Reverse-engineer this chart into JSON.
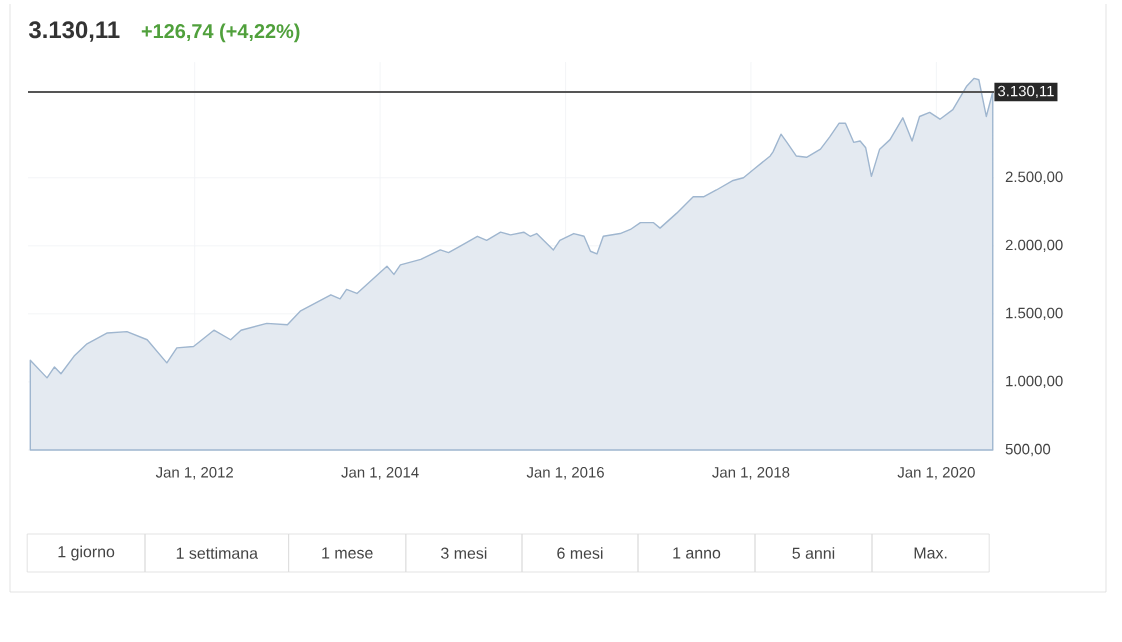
{
  "chart_data": {
    "type": "area",
    "title": "3.130,11",
    "subtitle": "+126,74 (+4,22%)",
    "x": [
      "2010-03-23",
      "2010-05-28",
      "2010-06-27",
      "2010-07-22",
      "2010-09-13",
      "2010-11-03",
      "2011-01-22",
      "2011-04-08",
      "2011-06-27",
      "2011-09-13",
      "2011-10-22",
      "2011-12-27",
      "2012-03-16",
      "2012-05-21",
      "2012-07-01",
      "2012-10-11",
      "2013-01-01",
      "2013-02-21",
      "2013-06-20",
      "2013-07-26",
      "2013-08-21",
      "2013-10-01",
      "2014-01-28",
      "2014-02-25",
      "2014-03-20",
      "2014-06-09",
      "2014-08-25",
      "2014-09-27",
      "2014-11-14",
      "2015-01-19",
      "2015-02-25",
      "2015-04-19",
      "2015-05-28",
      "2015-07-19",
      "2015-08-14",
      "2015-09-09",
      "2015-11-14",
      "2015-12-09",
      "2016-02-03",
      "2016-03-13",
      "2016-04-08",
      "2016-05-03",
      "2016-05-28",
      "2016-08-03",
      "2016-09-13",
      "2016-10-22",
      "2016-12-13",
      "2017-01-08",
      "2017-03-13",
      "2017-05-17",
      "2017-06-27",
      "2017-08-17",
      "2017-10-22",
      "2017-12-02",
      "2018-01-11",
      "2018-03-16",
      "2018-03-27",
      "2018-04-28",
      "2018-05-21",
      "2018-06-27",
      "2018-08-07",
      "2018-10-01",
      "2018-11-07",
      "2018-12-13",
      "2019-01-08",
      "2019-02-10",
      "2019-03-05",
      "2019-03-27",
      "2019-04-19",
      "2019-05-21",
      "2019-07-01",
      "2019-08-21",
      "2019-09-27",
      "2019-10-26",
      "2019-12-05",
      "2020-01-15",
      "2020-03-05",
      "2020-04-28",
      "2020-05-28",
      "2020-06-16",
      "2020-07-15",
      "2020-08-10"
    ],
    "series": [
      {
        "color": "#9fb6cf",
        "values": [
          1160,
          1030,
          1110,
          1060,
          1190,
          1280,
          1360,
          1370,
          1310,
          1140,
          1250,
          1260,
          1380,
          1310,
          1380,
          1430,
          1420,
          1520,
          1640,
          1610,
          1680,
          1650,
          1850,
          1790,
          1860,
          1900,
          1970,
          1950,
          2000,
          2070,
          2040,
          2100,
          2080,
          2100,
          2070,
          2090,
          1970,
          2040,
          2090,
          2070,
          1960,
          1940,
          2070,
          2090,
          2120,
          2170,
          2170,
          2130,
          2240,
          2360,
          2360,
          2410,
          2480,
          2500,
          2560,
          2660,
          2690,
          2820,
          2760,
          2660,
          2650,
          2710,
          2800,
          2900,
          2900,
          2760,
          2770,
          2720,
          2510,
          2710,
          2780,
          2940,
          2770,
          2950,
          2980,
          2930,
          3000,
          3170,
          3230,
          3220,
          2950,
          3130
        ]
      }
    ],
    "xlim": [
      "2010-03-14",
      "2020-08-15"
    ],
    "ylim": [
      500,
      3350
    ],
    "xticks": [
      {
        "value": "2012-01-01",
        "label": "Jan 1, 2012"
      },
      {
        "value": "2014-01-01",
        "label": "Jan 1, 2014"
      },
      {
        "value": "2016-01-01",
        "label": "Jan 1, 2016"
      },
      {
        "value": "2018-01-01",
        "label": "Jan 1, 2018"
      },
      {
        "value": "2020-01-01",
        "label": "Jan 1, 2020"
      }
    ],
    "yticks": [
      {
        "value": 500,
        "label": "500,00"
      },
      {
        "value": 1000,
        "label": "1.000,00"
      },
      {
        "value": 1500,
        "label": "1.500,00"
      },
      {
        "value": 2000,
        "label": "2.000,00"
      },
      {
        "value": 2500,
        "label": "2.500,00"
      }
    ],
    "grid": true,
    "ref_lines": [
      {
        "axis": "y",
        "value": 3130.11,
        "label": "3.130,11",
        "color": "#555555"
      }
    ],
    "annotations": [
      "1 giorno",
      "1 settimana",
      "1 mese",
      "3 mesi",
      "6 mesi",
      "1 anno",
      "5 anni",
      "Max."
    ]
  }
}
